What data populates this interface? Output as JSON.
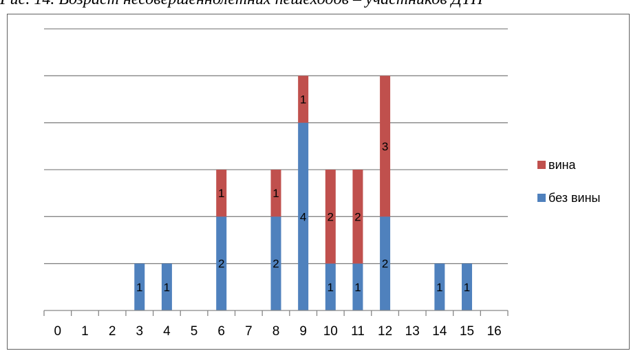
{
  "caption": "Рис. 14. Возраст несовершеннолетних пешеходов – участников ДТП",
  "chart_data": {
    "type": "bar",
    "stacked": true,
    "categories": [
      "0",
      "1",
      "2",
      "3",
      "4",
      "5",
      "6",
      "7",
      "8",
      "9",
      "10",
      "11",
      "12",
      "13",
      "14",
      "15",
      "16"
    ],
    "series": [
      {
        "name": "без вины",
        "color": "#4f81bd",
        "values": [
          0,
          0,
          0,
          1,
          1,
          0,
          2,
          0,
          2,
          4,
          1,
          1,
          2,
          0,
          1,
          1,
          0
        ]
      },
      {
        "name": "вина",
        "color": "#c0504d",
        "values": [
          0,
          0,
          0,
          0,
          0,
          0,
          1,
          0,
          1,
          1,
          2,
          2,
          3,
          0,
          0,
          0,
          0
        ]
      }
    ],
    "ylim": [
      0,
      5
    ],
    "grid": true,
    "data_labels": true,
    "legend_position": "right"
  }
}
